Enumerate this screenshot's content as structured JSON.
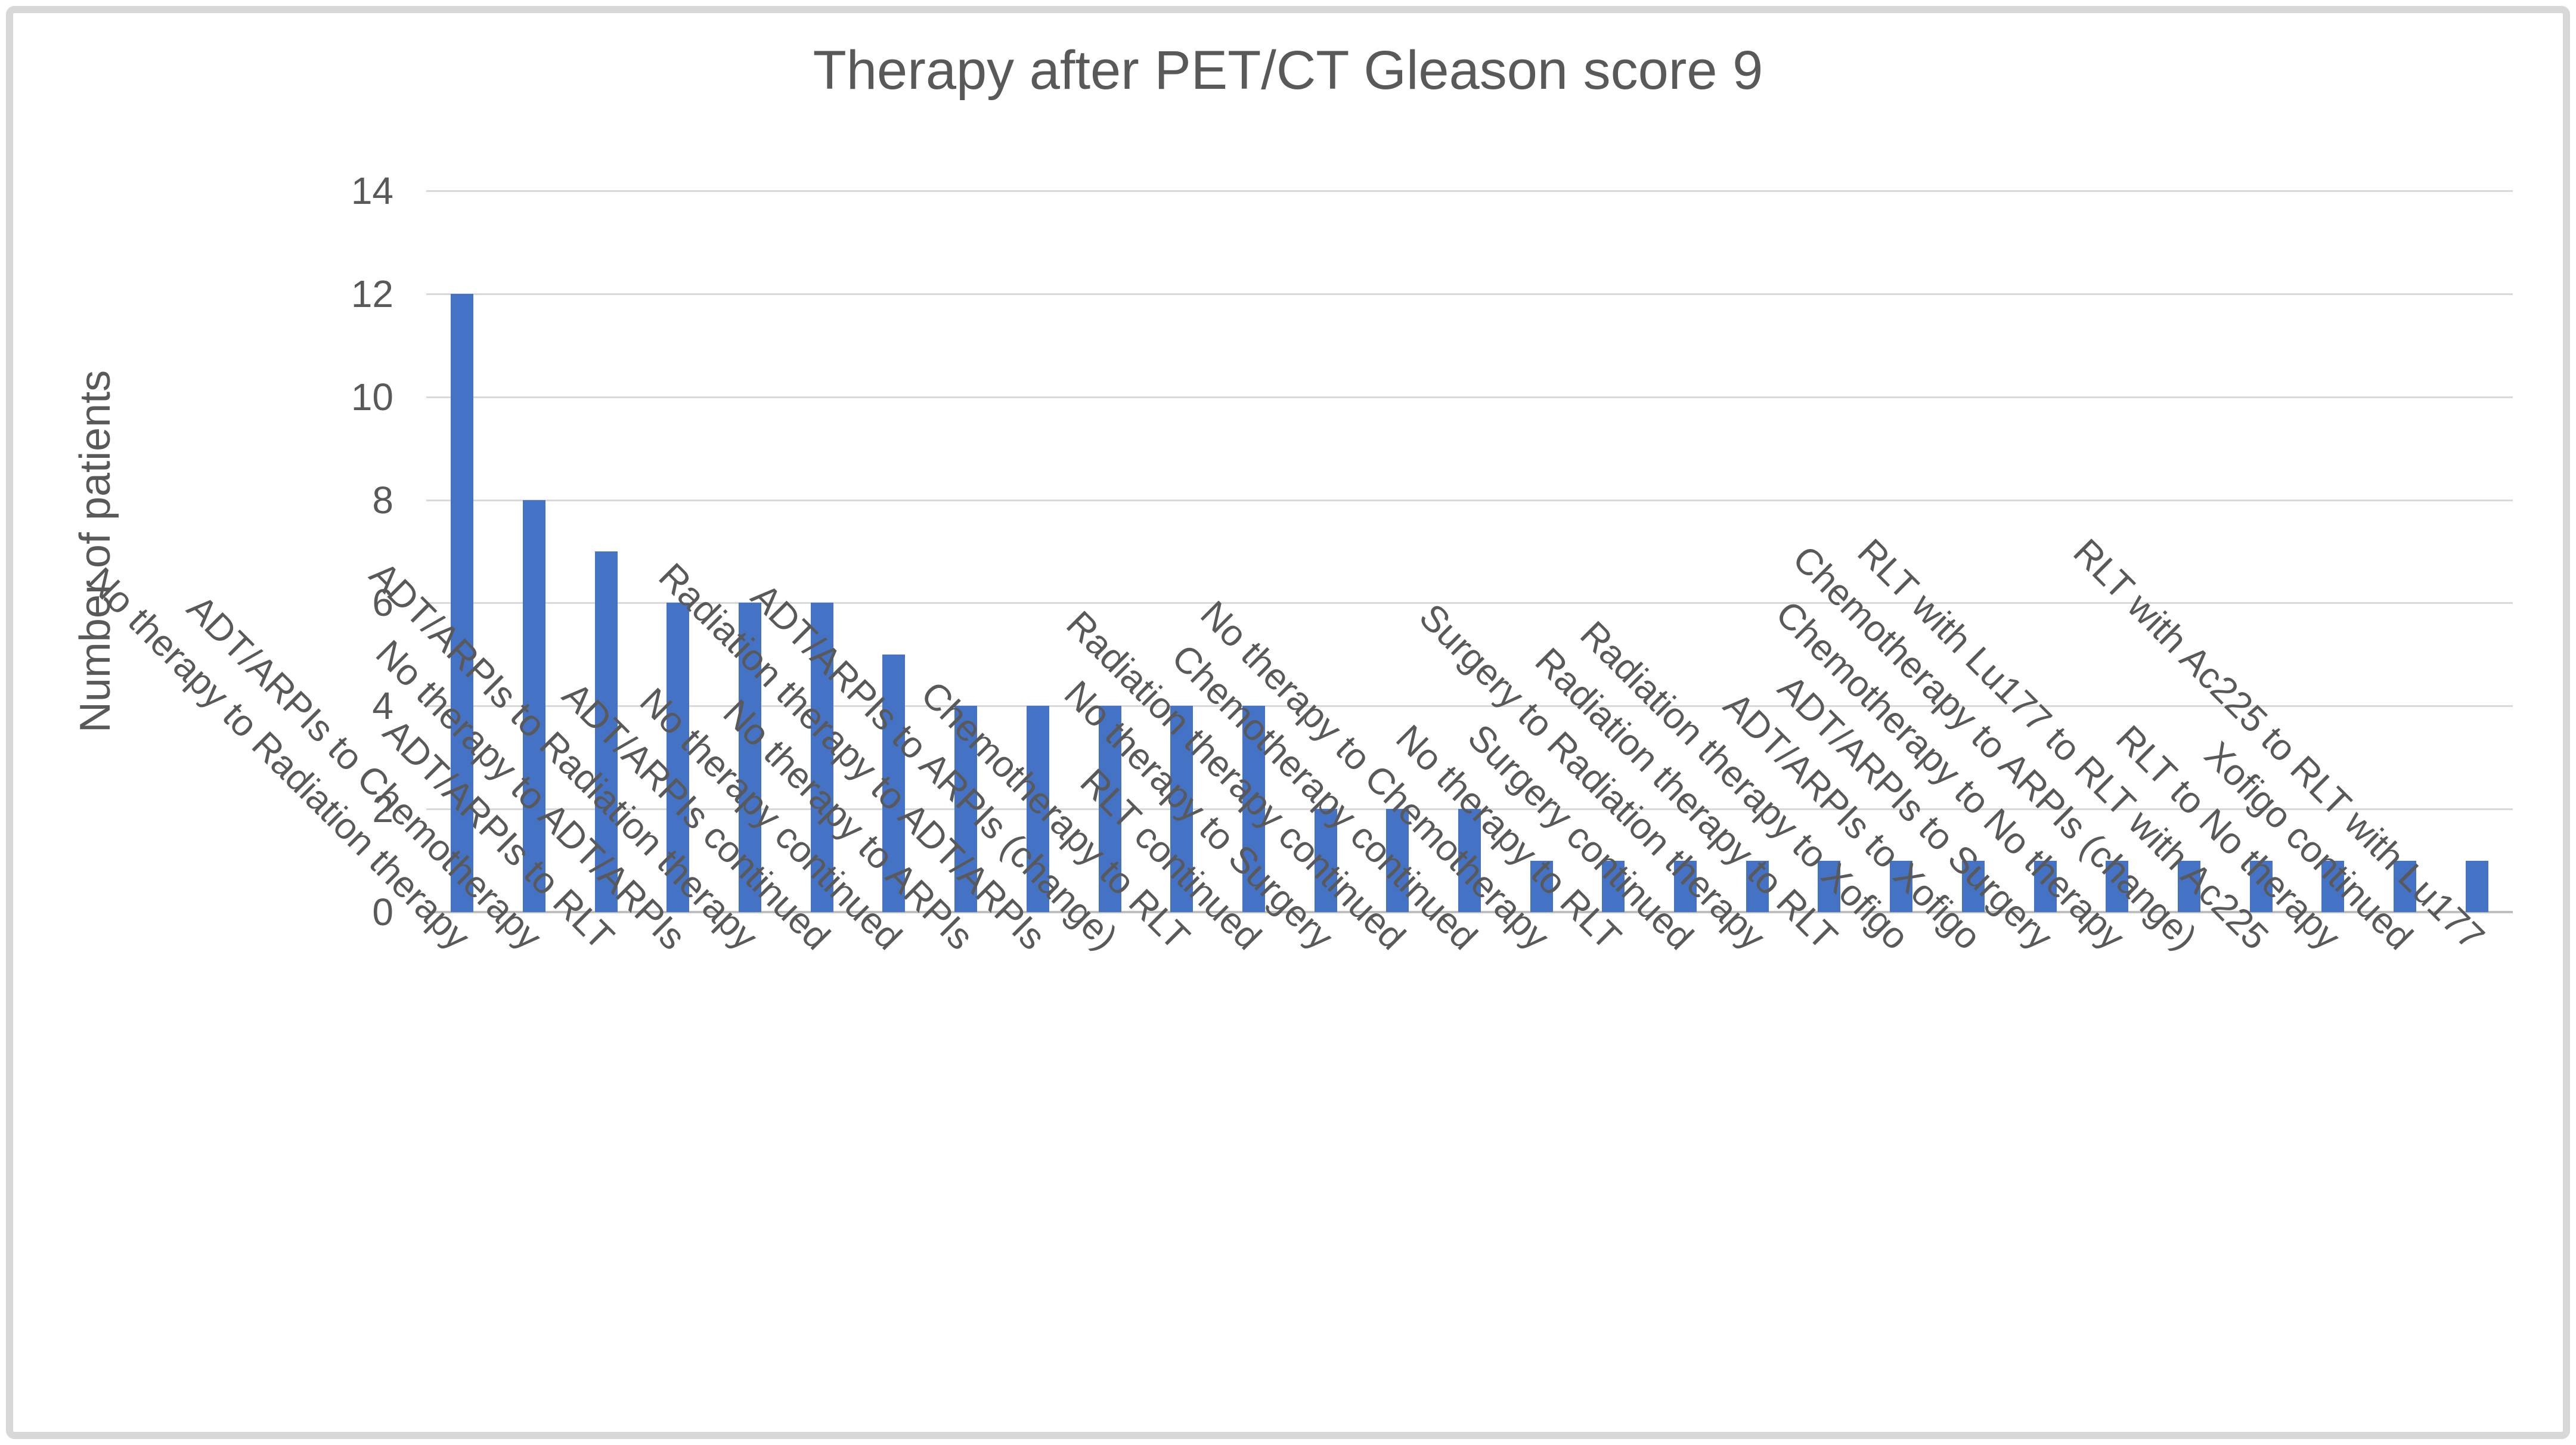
{
  "figure": {
    "background": "#FFFFFF",
    "border_color": "#D8D8D8"
  },
  "chart_data": {
    "type": "bar",
    "title": "Therapy after PET/CT Gleason score 9",
    "xlabel": "",
    "ylabel": "Number of patients",
    "ylim": [
      0,
      14
    ],
    "yticks": [
      0,
      2,
      4,
      6,
      8,
      10,
      12,
      14
    ],
    "grid": true,
    "legend": false,
    "bar_color": "#4472C4",
    "gridline_color": "#D9D9D9",
    "axis_line_color": "#BFBFBF",
    "text_color": "#595959",
    "categories": [
      "No therapy to Radiation therapy",
      "ADT/ARPIs to Chemotherapy",
      "ADT/ARPIs to RLT",
      "No therapy to ADT/ARPIs",
      "ADT/ARPIs to Radiation therapy",
      "ADT/ARPIs continued",
      "No therapy continued",
      "No therapy to ARPIs",
      "Radiation therapy to ADT/ARPIs",
      "ADT/ARPIs to ARPIs (change)",
      "Chemotherapy to RLT",
      "RLT continued",
      "No therapy to Surgery",
      "Radiation therapy continued",
      "Chemotherapy continued",
      "No therapy to Chemotherapy",
      "No therapy to RLT",
      "Surgery continued",
      "Surgery to Radiation therapy",
      "Radiation therapy to RLT",
      "Radiation therapy to Xofigo",
      "ADT/ARPIs to Xofigo",
      "ADT/ARPIs to Surgery",
      "Chemotherapy to No therapy",
      "Chemotherapy to ARPIs (change)",
      "RLT with Lu177 to RLT with Ac225",
      "RLT to No therapy",
      "Xofigo continued",
      "RLT with Ac225 to RLT with Lu177"
    ],
    "values": [
      12,
      8,
      7,
      6,
      6,
      6,
      5,
      4,
      4,
      4,
      4,
      4,
      2,
      2,
      2,
      1,
      1,
      1,
      1,
      1,
      1,
      1,
      1,
      1,
      1,
      1,
      1,
      1,
      1
    ]
  }
}
